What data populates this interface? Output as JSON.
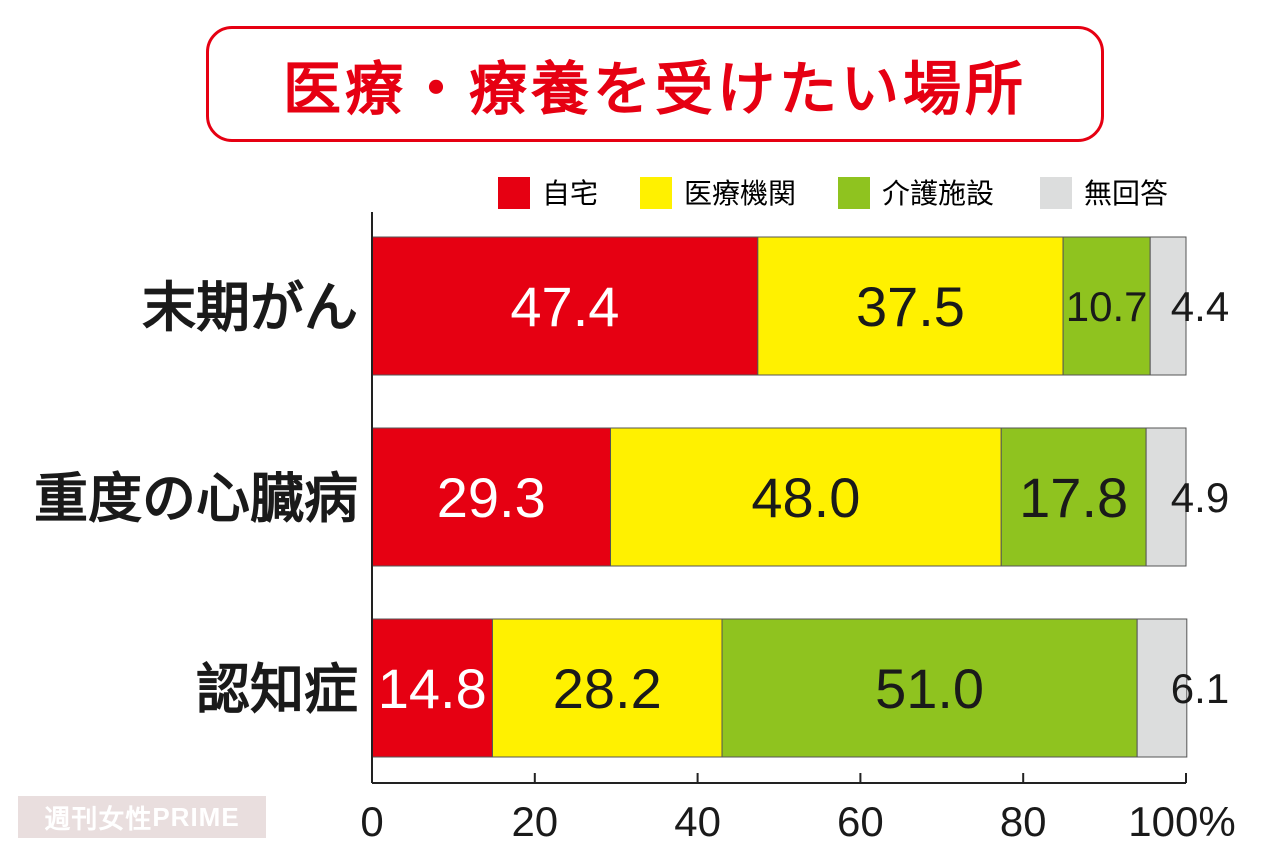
{
  "title": "医療・療養を受けたい場所",
  "watermark": {
    "jp": "週刊女性",
    "en": "PRIME"
  },
  "chart_data": {
    "type": "bar",
    "orientation": "horizontal",
    "stacked": true,
    "title": "医療・療養を受けたい場所",
    "categories": [
      "末期がん",
      "重度の心臓病",
      "認知症"
    ],
    "series": [
      {
        "name": "自宅",
        "color": "#e60012",
        "values": [
          47.4,
          29.3,
          14.8
        ]
      },
      {
        "name": "医療機関",
        "color": "#fff100",
        "values": [
          37.5,
          48.0,
          28.2
        ]
      },
      {
        "name": "介護施設",
        "color": "#8fc31f",
        "values": [
          10.7,
          17.8,
          51.0
        ]
      },
      {
        "name": "無回答",
        "color": "#dcdddd",
        "values": [
          4.4,
          4.9,
          6.1
        ]
      }
    ],
    "xlim": [
      0,
      100
    ],
    "xticks": [
      "0",
      "20",
      "40",
      "60",
      "80",
      "100%"
    ],
    "legend_position": "top-right",
    "grid": false
  }
}
